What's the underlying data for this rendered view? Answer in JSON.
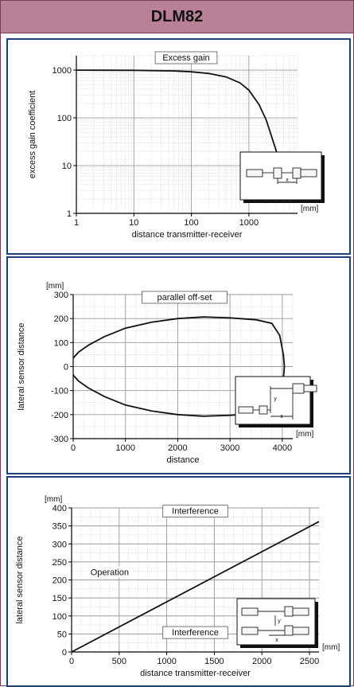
{
  "header": {
    "title": "DLM82"
  },
  "colors": {
    "header_bg": "#b98197",
    "panel_border": "#1f3f7a",
    "curve": "#111111",
    "grid": "#9a9a9a"
  },
  "chart_data": [
    {
      "type": "line",
      "title": "Excess gain",
      "xlabel": "distance transmitter-receiver",
      "ylabel": "excess gain coefficient",
      "x_unit": "[mm]",
      "x_scale": "log",
      "y_scale": "log",
      "xlim": [
        1,
        7000
      ],
      "ylim": [
        1,
        2000
      ],
      "x_ticks": [
        1,
        10,
        100,
        1000
      ],
      "x_tick_labels": [
        "1",
        "10",
        "100",
        "1000"
      ],
      "y_ticks": [
        1,
        10,
        100,
        1000
      ],
      "y_tick_labels": [
        "1",
        "10",
        "100",
        "1000"
      ],
      "grid": true,
      "series": [
        {
          "x": [
            1,
            10,
            50,
            100,
            200,
            400,
            700,
            1000,
            1500,
            2000,
            3000,
            4000
          ],
          "y": [
            1000,
            990,
            960,
            920,
            850,
            720,
            540,
            380,
            190,
            90,
            20,
            5
          ]
        }
      ],
      "inset_icon": "transmitter-receiver-diagram-icon"
    },
    {
      "type": "line",
      "title": "parallel off-set",
      "xlabel": "distance",
      "ylabel": "lateral sensor distance",
      "y_unit": "[mm]",
      "x_unit": "[mm]",
      "xlim": [
        0,
        4200
      ],
      "ylim": [
        -300,
        300
      ],
      "x_ticks": [
        0,
        1000,
        2000,
        3000,
        4000
      ],
      "x_tick_labels": [
        "0",
        "1000",
        "2000",
        "3000",
        "4000"
      ],
      "y_ticks": [
        -300,
        -200,
        -100,
        0,
        100,
        200,
        300
      ],
      "y_tick_labels": [
        "-300",
        "-200",
        "-100",
        "0",
        "100",
        "200",
        "300"
      ],
      "grid": true,
      "series": [
        {
          "x": [
            0,
            100,
            300,
            600,
            1000,
            1500,
            2000,
            2500,
            3000,
            3500,
            3800,
            3950,
            4020,
            4040
          ],
          "y": [
            35,
            60,
            90,
            125,
            160,
            185,
            200,
            207,
            203,
            195,
            180,
            130,
            50,
            0
          ]
        },
        {
          "x": [
            0,
            100,
            300,
            600,
            1000,
            1500,
            2000,
            2500,
            3000,
            3500,
            3800,
            3950,
            4020,
            4040
          ],
          "y": [
            -35,
            -60,
            -90,
            -125,
            -160,
            -185,
            -200,
            -207,
            -203,
            -195,
            -180,
            -130,
            -50,
            0
          ]
        }
      ],
      "inset_icon": "offset-alignment-diagram-icon"
    },
    {
      "type": "line",
      "xlabel": "distance transmitter-receiver",
      "ylabel": "lateral sensor distance",
      "y_unit": "[mm]",
      "x_unit": "[mm]",
      "xlim": [
        0,
        2600
      ],
      "ylim": [
        0,
        400
      ],
      "x_ticks": [
        0,
        500,
        1000,
        1500,
        2000,
        2500
      ],
      "x_tick_labels": [
        "0",
        "500",
        "1000",
        "1500",
        "2000",
        "2500"
      ],
      "y_ticks": [
        0,
        50,
        100,
        150,
        200,
        250,
        300,
        350,
        400
      ],
      "y_tick_labels": [
        "0",
        "50",
        "100",
        "150",
        "200",
        "250",
        "300",
        "350",
        "400"
      ],
      "grid": true,
      "series": [
        {
          "x": [
            0,
            2600
          ],
          "y": [
            0,
            362
          ]
        }
      ],
      "annotations": [
        {
          "text": "Interference",
          "x": 1300,
          "y": 392,
          "boxed": true
        },
        {
          "text": "Operation",
          "x": 400,
          "y": 222,
          "boxed": false
        },
        {
          "text": "Interference",
          "x": 1300,
          "y": 55,
          "boxed": true
        }
      ],
      "inset_icon": "interference-alignment-diagram-icon"
    }
  ]
}
